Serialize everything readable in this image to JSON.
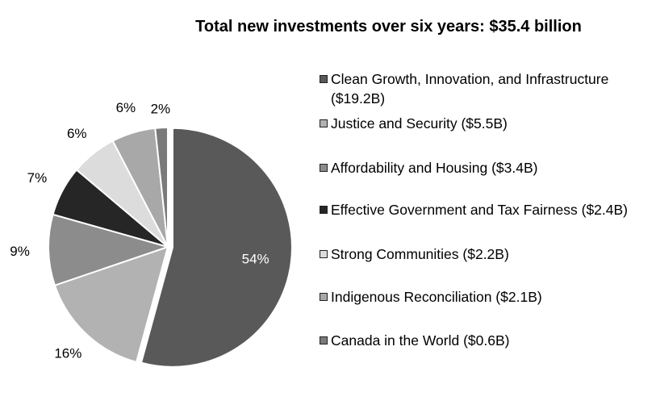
{
  "chart_data": {
    "type": "pie",
    "title": "Total new investments over six years: $35.4 billion",
    "slices": [
      {
        "legend": "Clean Growth, Innovation, and Infrastructure ($19.2B)",
        "value": 19.2,
        "percent_label": "54%",
        "color": "#595959"
      },
      {
        "legend": "Justice and Security ($5.5B)",
        "value": 5.5,
        "percent_label": "16%",
        "color": "#b2b2b2"
      },
      {
        "legend": "Affordability and Housing ($3.4B)",
        "value": 3.4,
        "percent_label": "9%",
        "color": "#8c8c8c"
      },
      {
        "legend": "Effective Government and Tax Fairness ($2.4B)",
        "value": 2.4,
        "percent_label": "7%",
        "color": "#262626"
      },
      {
        "legend": "Strong Communities ($2.2B)",
        "value": 2.2,
        "percent_label": "6%",
        "color": "#dcdcdc"
      },
      {
        "legend": "Indigenous Reconciliation ($2.1B)",
        "value": 2.1,
        "percent_label": "6%",
        "color": "#a8a8a8"
      },
      {
        "legend": "Canada in the World ($0.6B)",
        "value": 0.6,
        "percent_label": "2%",
        "color": "#7a7a7a"
      }
    ],
    "legend_position": "right"
  }
}
